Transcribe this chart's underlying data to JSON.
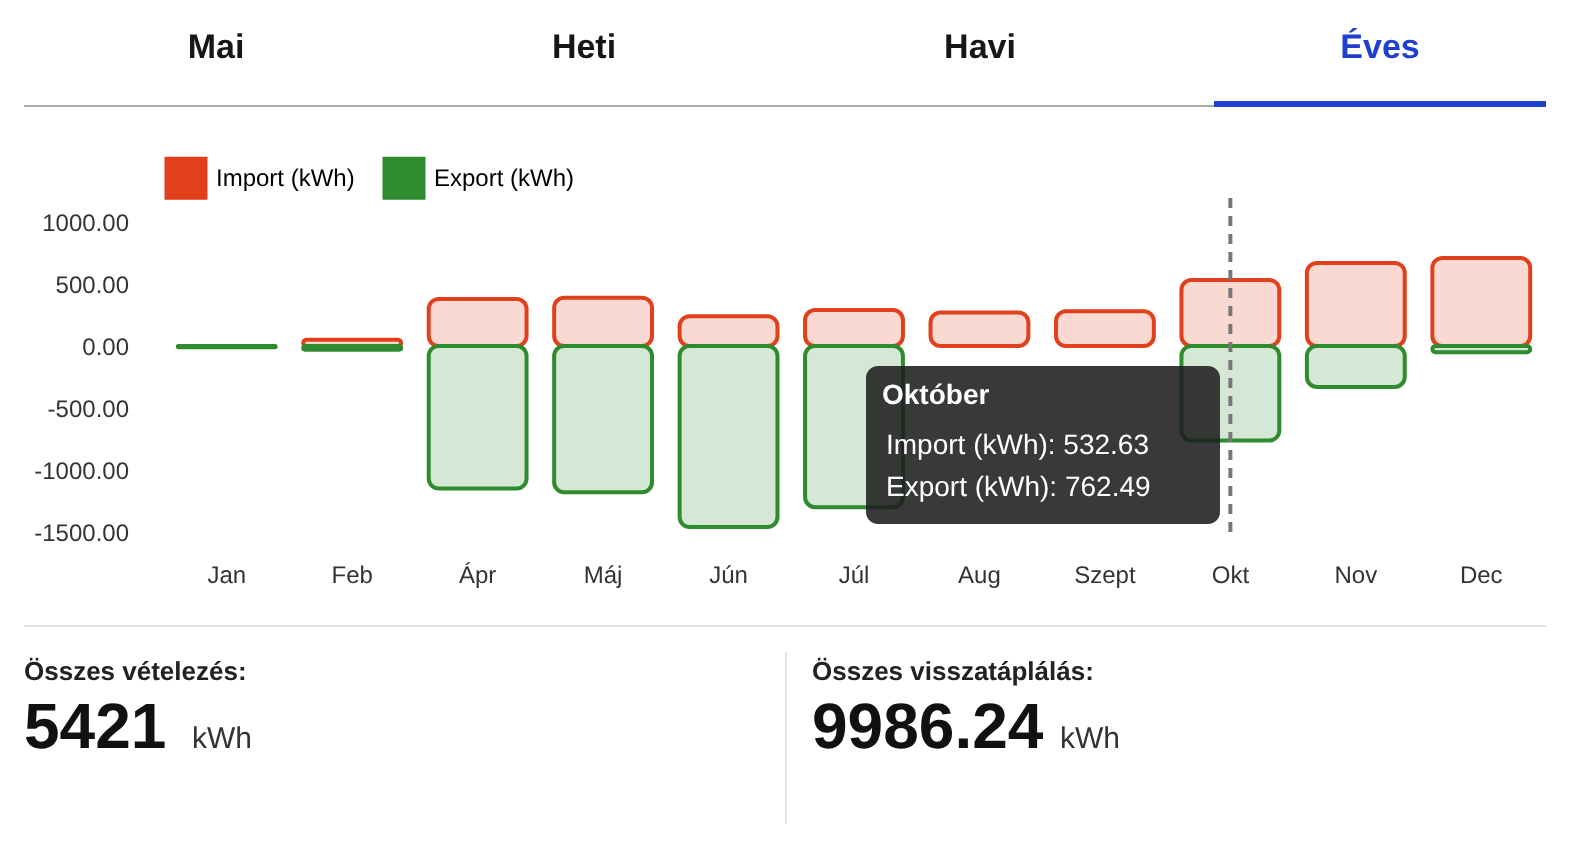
{
  "chart_data": {
    "type": "bar",
    "categories": [
      "Jan",
      "Feb",
      "Ápr",
      "Máj",
      "Jún",
      "Júl",
      "Aug",
      "Szept",
      "Okt",
      "Nov",
      "Dec"
    ],
    "series": [
      {
        "name": "Import (kWh)",
        "color": "#e0401c",
        "values": [
          0,
          50,
          380,
          390,
          240,
          290,
          270,
          280,
          532.63,
          670,
          710
        ]
      },
      {
        "name": "Export (kWh)",
        "color": "#2e8b2e",
        "values": [
          -10,
          -30,
          -1150,
          -1180,
          -1460,
          -1300,
          null,
          null,
          -762.49,
          -330,
          -50
        ]
      }
    ],
    "ylim": [
      -1500,
      1000
    ],
    "yticks": [
      {
        "value": 1000,
        "label": "1000.00"
      },
      {
        "value": 500,
        "label": "500.00"
      },
      {
        "value": 0,
        "label": "0.00"
      },
      {
        "value": -500,
        "label": "-500.00"
      },
      {
        "value": -1000,
        "label": "-1000.00"
      },
      {
        "value": -1500,
        "label": "-1500.00"
      }
    ],
    "grid": false,
    "legend": "top",
    "ref_lines": [
      {
        "axis": "x",
        "value": "Okt",
        "line_style": "dashed",
        "color": "#777777"
      }
    ],
    "annotations": [
      "Mai",
      "Heti",
      "Havi",
      "Éves",
      "Október",
      "Import (kWh): 532.63",
      "Export (kWh): 762.49",
      "Összes vételezés:",
      "5421",
      "kWh",
      "Összes visszatáplálás:",
      "9986.24",
      "kWh"
    ]
  }
}
